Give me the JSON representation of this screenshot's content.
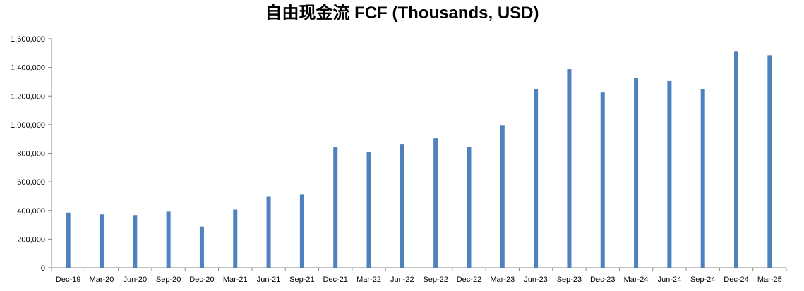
{
  "chart_data": {
    "type": "bar",
    "title": "自由现金流 FCF (Thousands, USD)",
    "xlabel": "",
    "ylabel": "",
    "categories": [
      "Dec-19",
      "Mar-20",
      "Jun-20",
      "Sep-20",
      "Dec-20",
      "Mar-21",
      "Jun-21",
      "Sep-21",
      "Dec-21",
      "Mar-22",
      "Jun-22",
      "Sep-22",
      "Dec-22",
      "Mar-23",
      "Jun-23",
      "Sep-23",
      "Dec-23",
      "Mar-24",
      "Jun-24",
      "Sep-24",
      "Dec-24",
      "Mar-25"
    ],
    "values": [
      385000,
      373000,
      368000,
      392000,
      287000,
      406000,
      500000,
      510000,
      843000,
      807000,
      861000,
      905000,
      847000,
      993000,
      1250000,
      1388000,
      1225000,
      1325000,
      1305000,
      1250000,
      1510000,
      1485000
    ],
    "ylim": [
      0,
      1600000
    ],
    "yticks": [
      "0",
      "200,000",
      "400,000",
      "600,000",
      "800,000",
      "1,000,000",
      "1,200,000",
      "1,400,000",
      "1,600,000"
    ],
    "grid": false,
    "legend": "none",
    "bar_color": "#4f81bd"
  }
}
